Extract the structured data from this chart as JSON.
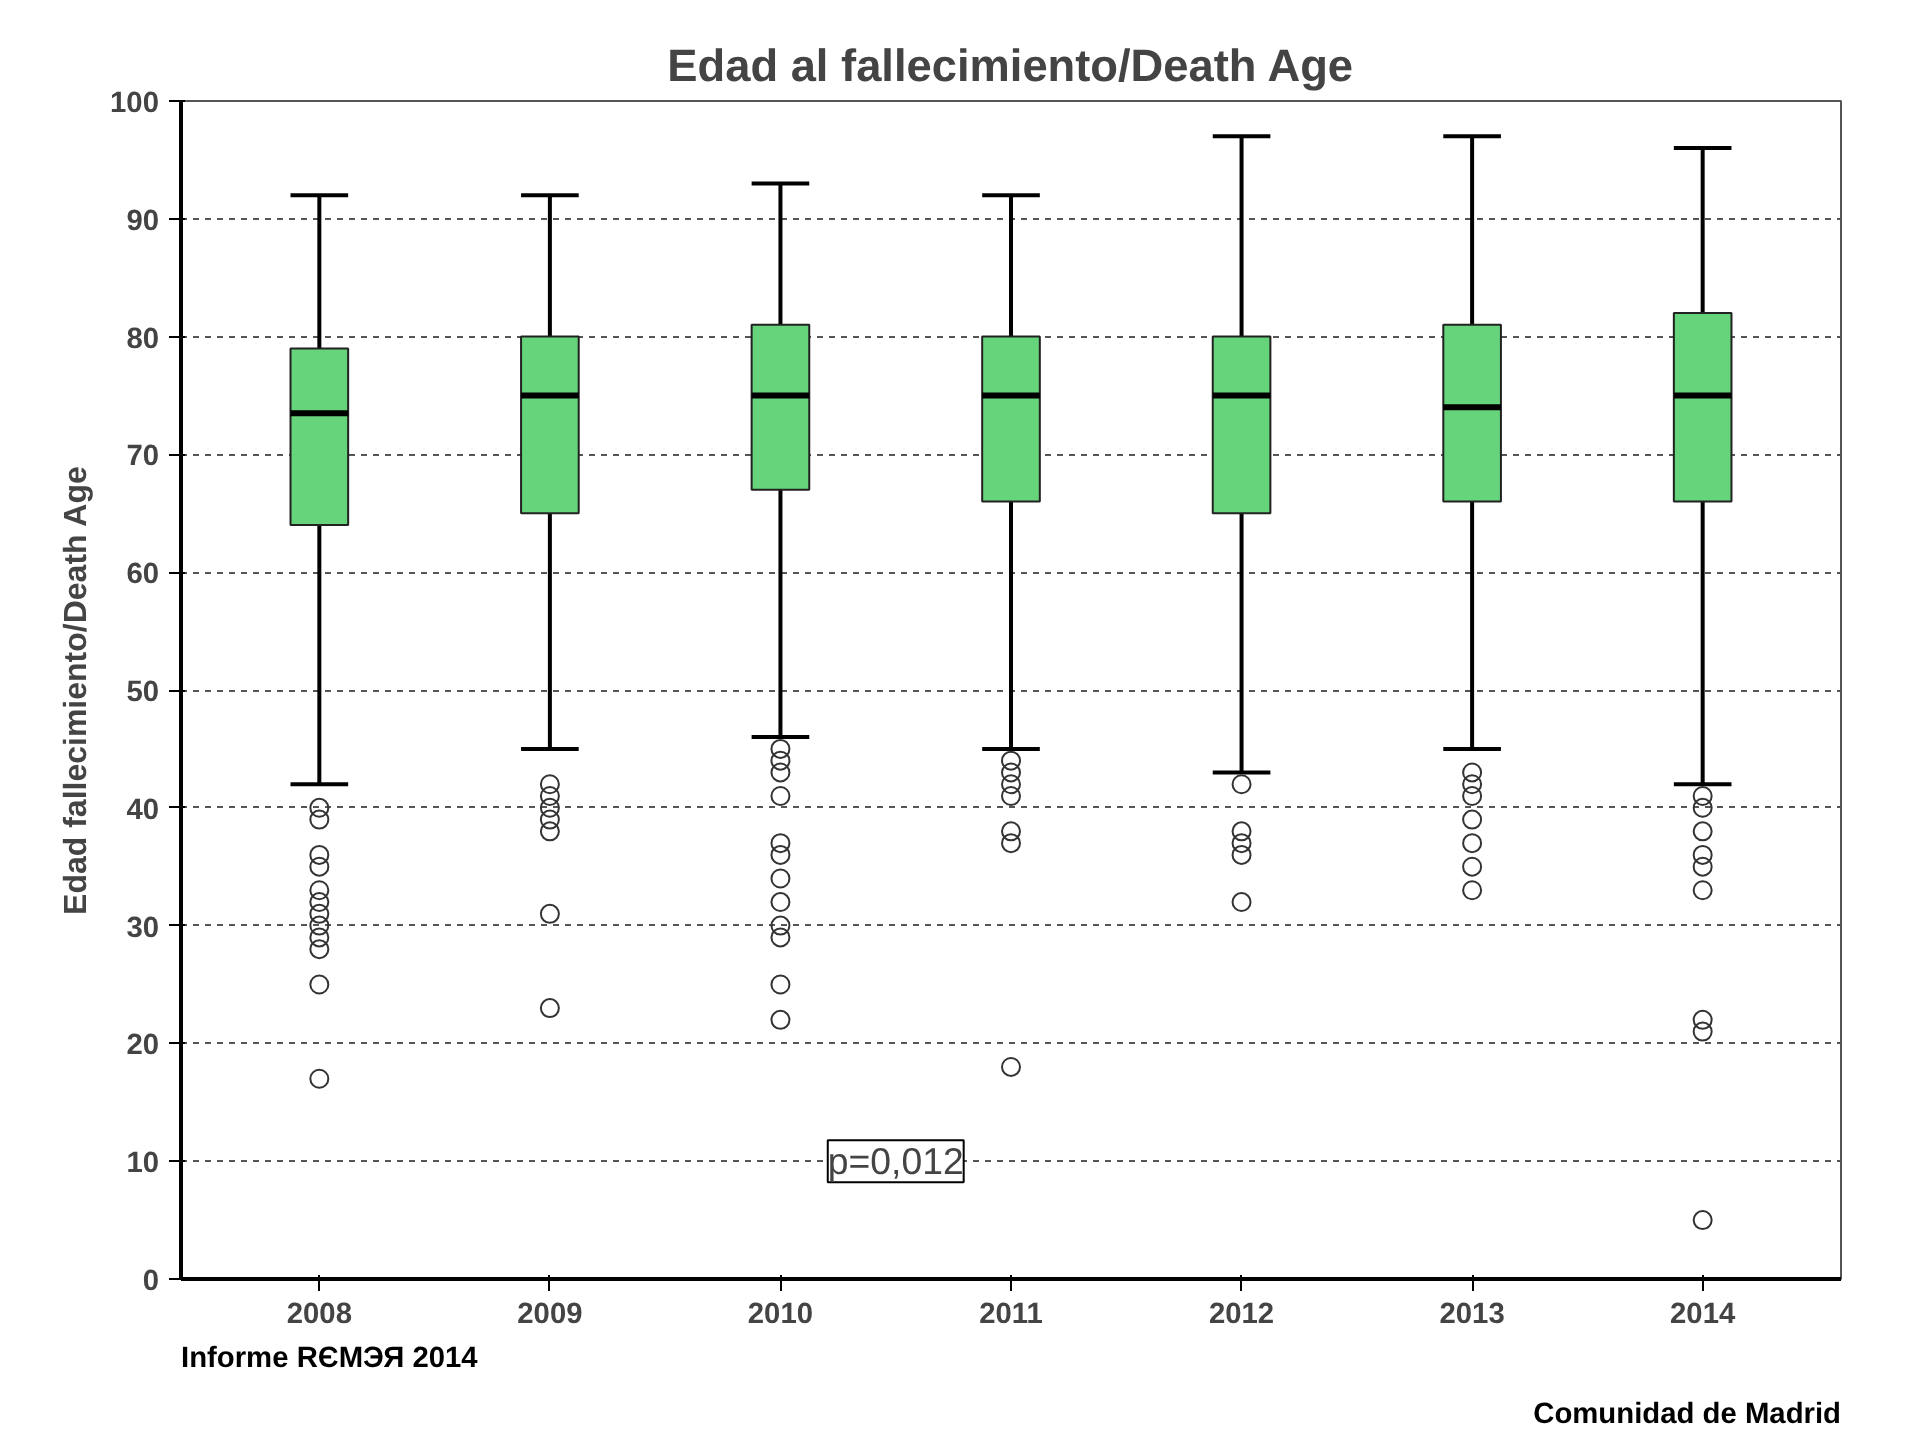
{
  "chart_data": {
    "type": "box",
    "title": "Edad al fallecimiento/Death Age",
    "ylabel": "Edad fallecimiento/Death Age",
    "categories": [
      "2008",
      "2009",
      "2010",
      "2011",
      "2012",
      "2013",
      "2014"
    ],
    "color": "#66d47a",
    "boxes": [
      {
        "low": 42,
        "q1": 64,
        "median": 73.5,
        "q3": 79,
        "high": 92,
        "outliers": [
          40,
          39,
          36,
          35,
          33,
          32,
          31,
          30,
          29,
          28,
          25,
          17
        ]
      },
      {
        "low": 45,
        "q1": 65,
        "median": 75,
        "q3": 80,
        "high": 92,
        "outliers": [
          42,
          41,
          40,
          39,
          38,
          31,
          23
        ]
      },
      {
        "low": 46,
        "q1": 67,
        "median": 75,
        "q3": 81,
        "high": 93,
        "outliers": [
          45,
          44,
          43,
          41,
          37,
          36,
          34,
          32,
          30,
          29,
          25,
          22
        ]
      },
      {
        "low": 45,
        "q1": 66,
        "median": 75,
        "q3": 80,
        "high": 92,
        "outliers": [
          44,
          43,
          42,
          41,
          38,
          37,
          18
        ]
      },
      {
        "low": 43,
        "q1": 65,
        "median": 75,
        "q3": 80,
        "high": 97,
        "outliers": [
          42,
          38,
          37,
          36,
          32
        ]
      },
      {
        "low": 45,
        "q1": 66,
        "median": 74,
        "q3": 81,
        "high": 97,
        "outliers": [
          43,
          42,
          41,
          39,
          37,
          35,
          33
        ]
      },
      {
        "low": 42,
        "q1": 66,
        "median": 75,
        "q3": 82,
        "high": 96,
        "outliers": [
          41,
          40,
          38,
          36,
          35,
          33,
          22,
          21,
          5
        ]
      }
    ],
    "ylim": [
      0,
      100
    ],
    "yticks": [
      0,
      10,
      20,
      30,
      40,
      50,
      60,
      70,
      80,
      90,
      100
    ],
    "grid": "y",
    "annotations": [
      "p=0,012",
      "Informe RЄMЭЯ 2014",
      "Comunidad de Madrid"
    ]
  }
}
